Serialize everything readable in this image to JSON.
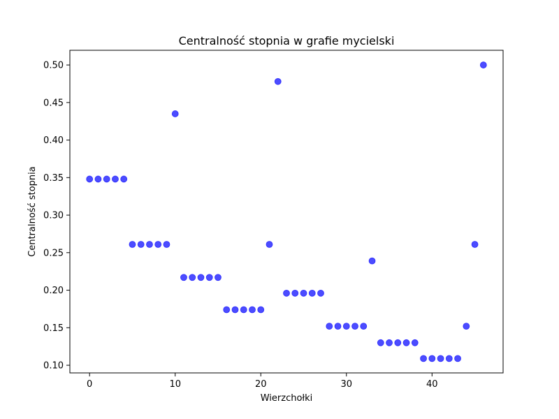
{
  "chart_data": {
    "type": "scatter",
    "title": "Centralność stopnia w grafie mycielski",
    "xlabel": "Wierzchołki",
    "ylabel": "Centralność stopnia",
    "xlim": [
      -2.3,
      48.3
    ],
    "ylim": [
      0.0898,
      0.5196
    ],
    "xticks": [
      0,
      10,
      20,
      30,
      40
    ],
    "xtick_labels": [
      "0",
      "10",
      "20",
      "30",
      "40"
    ],
    "yticks": [
      0.1,
      0.15,
      0.2,
      0.25,
      0.3,
      0.35,
      0.4,
      0.45,
      0.5
    ],
    "ytick_labels": [
      "0.10",
      "0.15",
      "0.20",
      "0.25",
      "0.30",
      "0.35",
      "0.40",
      "0.45",
      "0.50"
    ],
    "grid": false,
    "marker_color": "#0000ff",
    "marker_opacity": 0.7,
    "series": [
      {
        "x": [
          0,
          1,
          2,
          3,
          4,
          5,
          6,
          7,
          8,
          9,
          10,
          11,
          12,
          13,
          14,
          15,
          16,
          17,
          18,
          19,
          20,
          21,
          22,
          23,
          24,
          25,
          26,
          27,
          28,
          29,
          30,
          31,
          32,
          33,
          34,
          35,
          36,
          37,
          38,
          39,
          40,
          41,
          42,
          43,
          44,
          45,
          46
        ],
        "y": [
          0.348,
          0.348,
          0.348,
          0.348,
          0.348,
          0.261,
          0.261,
          0.261,
          0.261,
          0.261,
          0.435,
          0.217,
          0.217,
          0.217,
          0.217,
          0.217,
          0.174,
          0.174,
          0.174,
          0.174,
          0.174,
          0.261,
          0.478,
          0.196,
          0.196,
          0.196,
          0.196,
          0.196,
          0.152,
          0.152,
          0.152,
          0.152,
          0.152,
          0.239,
          0.13,
          0.13,
          0.13,
          0.13,
          0.13,
          0.109,
          0.109,
          0.109,
          0.109,
          0.109,
          0.152,
          0.261,
          0.5
        ]
      }
    ]
  }
}
